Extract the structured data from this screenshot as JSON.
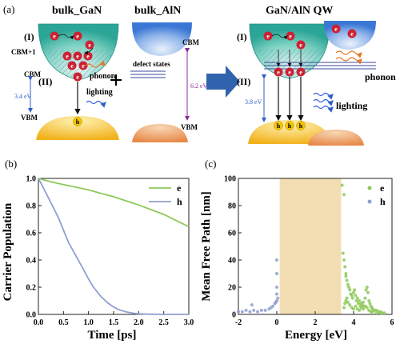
{
  "colors": {
    "electron": "#cc2233",
    "hole": "#f0c000",
    "gan_well": "#3bb5a8",
    "aln_well": "#4f8ee0",
    "arrow_blue": "#2f5fc8",
    "photon_blue": "#2f60d8",
    "phonon": "#e07b2a",
    "energy_band": "#f3ddb3",
    "e_series": "#8ec95a",
    "h_series": "#8f9fd0",
    "aln_gap": "#8e2aa0"
  },
  "panel_a": {
    "label": "(a)",
    "bulk_gan_title": "bulk_GaN",
    "bulk_aln_title": "bulk_AlN",
    "qw_title": "GaN/AlN QW",
    "level_I": "(I)",
    "level_II": "(II)",
    "cbm_plus1": "CBM+1",
    "cbm": "CBM",
    "vbm": "VBM",
    "gan_gap": "3.4 eV",
    "aln_gap": "6.2 eV",
    "qw_gap": "3.8 eV",
    "defect_states": "defect states",
    "phonon": "phonon",
    "lighting": "lighting",
    "electron_symbol": "e",
    "hole_symbol": "h",
    "plus": "+"
  },
  "panel_b": {
    "label": "(b)"
  },
  "panel_c": {
    "label": "(c)"
  },
  "chart_data": [
    {
      "type": "line",
      "xlabel": "Time [ps]",
      "ylabel": "Carrier Population",
      "xlim": [
        0.0,
        3.0
      ],
      "ylim": [
        0.0,
        1.0
      ],
      "xticks": [
        "0.0",
        "0.5",
        "1.0",
        "1.5",
        "2.0",
        "2.5",
        "3.0"
      ],
      "yticks": [
        "0.0",
        "0.2",
        "0.4",
        "0.6",
        "0.8",
        "1.0"
      ],
      "legend_position": "top-right",
      "series": [
        {
          "name": "e",
          "x": [
            0,
            0.25,
            0.5,
            0.75,
            1.0,
            1.25,
            1.5,
            1.75,
            2.0,
            2.25,
            2.5,
            2.75,
            3.0
          ],
          "y": [
            1.0,
            0.975,
            0.955,
            0.935,
            0.915,
            0.89,
            0.865,
            0.835,
            0.805,
            0.77,
            0.735,
            0.69,
            0.645
          ]
        },
        {
          "name": "h",
          "x": [
            0,
            0.1,
            0.25,
            0.4,
            0.5,
            0.6,
            0.75,
            0.9,
            1.0,
            1.1,
            1.25,
            1.4,
            1.5,
            1.6,
            1.75,
            1.9,
            2.0,
            2.25,
            2.5,
            3.0
          ],
          "y": [
            1.0,
            0.93,
            0.82,
            0.71,
            0.62,
            0.53,
            0.43,
            0.33,
            0.26,
            0.2,
            0.13,
            0.08,
            0.055,
            0.035,
            0.018,
            0.008,
            0.004,
            0.001,
            0,
            0
          ]
        }
      ]
    },
    {
      "type": "scatter",
      "xlabel": "Energy [eV]",
      "ylabel": "Mean Free Path [nm]",
      "xlim": [
        -2,
        6
      ],
      "ylim": [
        0,
        100
      ],
      "xticks": [
        "-2",
        "0",
        "2",
        "4",
        "6"
      ],
      "yticks": [
        "0",
        "20",
        "40",
        "60",
        "80",
        "100"
      ],
      "legend_position": "top-right",
      "shaded_band": [
        0.15,
        3.35
      ],
      "series": [
        {
          "name": "e",
          "x": [
            3.4,
            3.45,
            3.5,
            3.5,
            3.55,
            3.6,
            3.6,
            3.65,
            3.7,
            3.75,
            3.8,
            3.85,
            3.9,
            3.95,
            4.0,
            4.05,
            4.1,
            4.15,
            4.2,
            4.25,
            4.3,
            4.35,
            4.4,
            4.45,
            4.5,
            4.55,
            4.6,
            4.65,
            4.7,
            4.75,
            4.8,
            4.85,
            4.9,
            4.95,
            5.0,
            5.1,
            5.2,
            5.3,
            5.4,
            5.5,
            5.6,
            3.5,
            3.55,
            3.6,
            3.65,
            3.7,
            3.8,
            3.9,
            4.0,
            4.1,
            4.2,
            4.3,
            4.4,
            4.5,
            4.6,
            4.7,
            4.8,
            4.9,
            5.0,
            5.2,
            5.4
          ],
          "y": [
            95,
            45,
            88,
            40,
            35,
            30,
            28,
            25,
            22,
            20,
            18,
            15,
            14,
            12,
            16,
            18,
            14,
            10,
            12,
            8,
            10,
            6,
            8,
            7,
            9,
            6,
            12,
            18,
            20,
            16,
            10,
            8,
            6,
            5,
            4,
            3,
            3,
            2,
            2,
            1,
            1,
            5,
            8,
            10,
            12,
            9,
            7,
            5,
            4,
            6,
            4,
            3,
            5,
            4,
            6,
            5,
            3,
            2,
            2,
            1,
            1
          ]
        },
        {
          "name": "h",
          "x": [
            -2,
            -1.8,
            -1.6,
            -1.4,
            -1.2,
            -1.0,
            -0.8,
            -0.6,
            -0.4,
            -0.3,
            -0.2,
            -0.1,
            0.0,
            0.0,
            0.0,
            0.0,
            0.05,
            -0.05,
            0.0,
            -1.3
          ],
          "y": [
            2,
            2,
            3,
            2,
            3,
            2,
            3,
            3,
            4,
            5,
            6,
            8,
            10,
            15,
            20,
            30,
            12,
            9,
            40,
            7
          ]
        }
      ]
    }
  ]
}
